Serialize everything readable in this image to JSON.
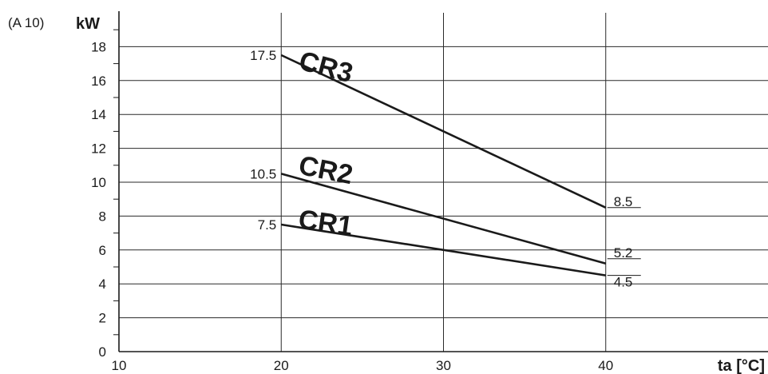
{
  "figure_tag": "(A 10)",
  "chart_data": {
    "type": "line",
    "ylabel": "kW",
    "xlabel": "ta [°C]",
    "xlim": [
      10,
      50
    ],
    "ylim": [
      0,
      20
    ],
    "x_ticks": [
      10,
      20,
      30,
      40
    ],
    "y_ticks": [
      0,
      2,
      4,
      6,
      8,
      10,
      12,
      14,
      16,
      18
    ],
    "grid": true,
    "series": [
      {
        "name": "CR3",
        "x": [
          20,
          40
        ],
        "values": [
          17.5,
          8.5
        ],
        "labels": [
          "17.5",
          "8.5"
        ]
      },
      {
        "name": "CR2",
        "x": [
          20,
          40
        ],
        "values": [
          10.5,
          5.2
        ],
        "labels": [
          "10.5",
          "5.2"
        ]
      },
      {
        "name": "CR1",
        "x": [
          20,
          40
        ],
        "values": [
          7.5,
          4.5
        ],
        "labels": [
          "7.5",
          "4.5"
        ]
      }
    ]
  }
}
